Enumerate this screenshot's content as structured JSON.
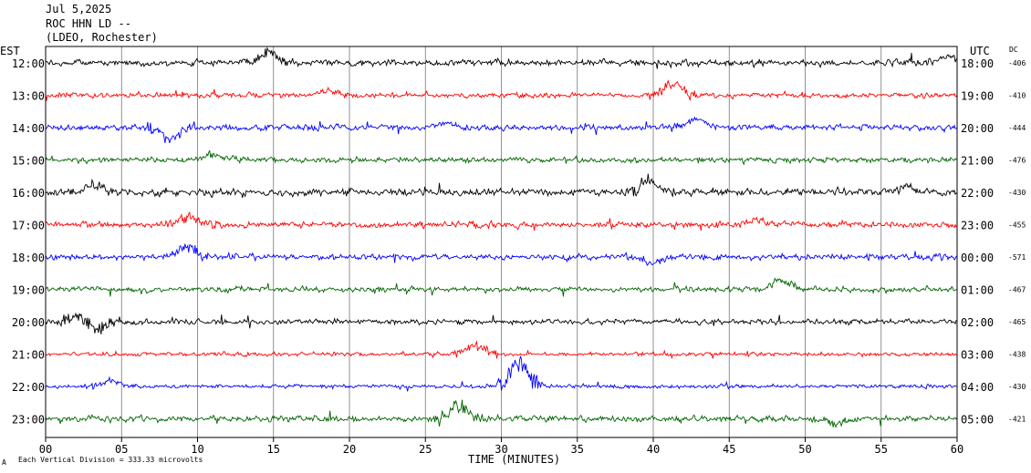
{
  "header": {
    "date": "Jul 5,2025",
    "station": "ROC HHN LD --",
    "network": "(LDEO, Rochester)"
  },
  "footer": {
    "scale_note": "Each Vertical Division =  333.33 microvolts",
    "mark": "A"
  },
  "colors": {
    "black": "#000000",
    "red": "#ff0000",
    "blue": "#0000ff",
    "green": "#006400",
    "grid": "#777777"
  },
  "chart_data": {
    "type": "line",
    "title": "",
    "xlabel": "TIME (MINUTES)",
    "left_axis_title": "EST",
    "right_axis_title": "UTC",
    "dc_title": "DC",
    "xlim": [
      0,
      60
    ],
    "x_ticks": [
      "00",
      "05",
      "10",
      "15",
      "20",
      "25",
      "30",
      "35",
      "40",
      "45",
      "50",
      "55",
      "60"
    ],
    "grid": true,
    "rows": [
      {
        "est": "12:00",
        "utc": "18:00",
        "dc": "-406",
        "color": "black",
        "amp": 1.0,
        "events": [
          [
            14.7,
            1.2
          ],
          [
            59.5,
            0.9
          ]
        ]
      },
      {
        "est": "13:00",
        "utc": "19:00",
        "dc": "-410",
        "color": "red",
        "amp": 0.8,
        "events": [
          [
            41.2,
            1.3
          ],
          [
            18.5,
            0.5
          ]
        ]
      },
      {
        "est": "14:00",
        "utc": "20:00",
        "dc": "-444",
        "color": "blue",
        "amp": 0.9,
        "events": [
          [
            8.2,
            -1.6
          ],
          [
            42.8,
            1.0
          ],
          [
            26.5,
            0.6
          ]
        ]
      },
      {
        "est": "15:00",
        "utc": "21:00",
        "dc": "-476",
        "color": "green",
        "amp": 0.8,
        "events": [
          [
            11.0,
            0.7
          ]
        ]
      },
      {
        "est": "16:00",
        "utc": "22:00",
        "dc": "-430",
        "color": "black",
        "amp": 1.1,
        "events": [
          [
            39.8,
            1.2
          ],
          [
            3.2,
            0.8
          ],
          [
            56.5,
            0.5
          ]
        ]
      },
      {
        "est": "17:00",
        "utc": "23:00",
        "dc": "-455",
        "color": "red",
        "amp": 0.9,
        "events": [
          [
            9.5,
            1.0
          ],
          [
            46.8,
            0.6
          ]
        ]
      },
      {
        "est": "18:00",
        "utc": "00:00",
        "dc": "-571",
        "color": "blue",
        "amp": 0.9,
        "events": [
          [
            9.3,
            1.2
          ],
          [
            40.0,
            -0.8
          ]
        ]
      },
      {
        "est": "19:00",
        "utc": "01:00",
        "dc": "-467",
        "color": "green",
        "amp": 0.8,
        "events": [
          [
            48.3,
            1.1
          ]
        ]
      },
      {
        "est": "20:00",
        "utc": "02:00",
        "dc": "-465",
        "color": "black",
        "amp": 0.8,
        "events": [
          [
            3.0,
            -1.6
          ],
          [
            2.5,
            1.4
          ]
        ]
      },
      {
        "est": "21:00",
        "utc": "03:00",
        "dc": "-438",
        "color": "red",
        "amp": 0.6,
        "events": [
          [
            28.3,
            1.1
          ]
        ]
      },
      {
        "est": "22:00",
        "utc": "04:00",
        "dc": "-430",
        "color": "blue",
        "amp": 0.6,
        "events": [
          [
            31.2,
            2.6
          ],
          [
            4.3,
            0.7
          ]
        ]
      },
      {
        "est": "23:00",
        "utc": "05:00",
        "dc": "-421",
        "color": "green",
        "amp": 0.9,
        "events": [
          [
            27.2,
            1.6
          ],
          [
            52.0,
            -0.7
          ]
        ]
      }
    ]
  }
}
